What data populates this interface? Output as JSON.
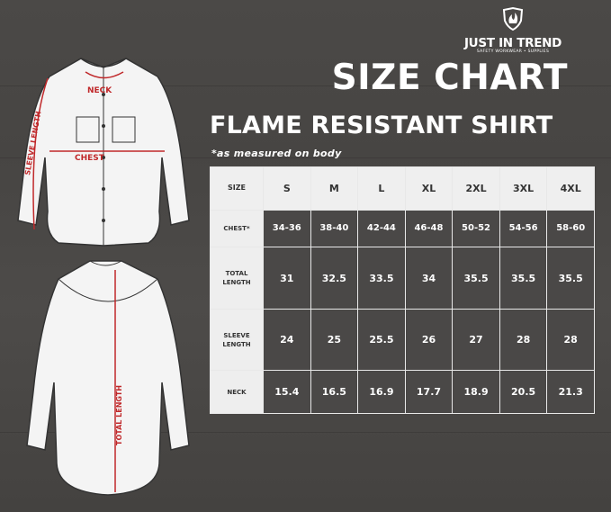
{
  "brand": {
    "name": "JUST IN TREND",
    "tagline": "SAFETY WORKWEAR • SUPPLIES",
    "icon": "flame-shield-icon"
  },
  "title": "SIZE CHART",
  "subtitle": "FLAME RESISTANT SHIRT",
  "note": "*as measured on body",
  "diagram_labels": {
    "neck": "NECK",
    "chest": "CHEST",
    "sleeve": "SLEEVE LENGTH",
    "total": "TOTAL LENGTH"
  },
  "colors": {
    "accent": "#c0282a",
    "background": "#4a4846",
    "header_cell": "#eeeeee"
  },
  "table": {
    "header_label": "SIZE",
    "sizes": [
      "S",
      "M",
      "L",
      "XL",
      "2XL",
      "3XL",
      "4XL"
    ],
    "rows": [
      {
        "label": "CHEST*",
        "values": [
          "34-36",
          "38-40",
          "42-44",
          "46-48",
          "50-52",
          "54-56",
          "58-60"
        ]
      },
      {
        "label": "TOTAL LENGTH",
        "values": [
          "31",
          "32.5",
          "33.5",
          "34",
          "35.5",
          "35.5",
          "35.5"
        ]
      },
      {
        "label": "SLEEVE LENGTH",
        "values": [
          "24",
          "25",
          "25.5",
          "26",
          "27",
          "28",
          "28"
        ]
      },
      {
        "label": "NECK",
        "values": [
          "15.4",
          "16.5",
          "16.9",
          "17.7",
          "18.9",
          "20.5",
          "21.3"
        ]
      }
    ]
  }
}
